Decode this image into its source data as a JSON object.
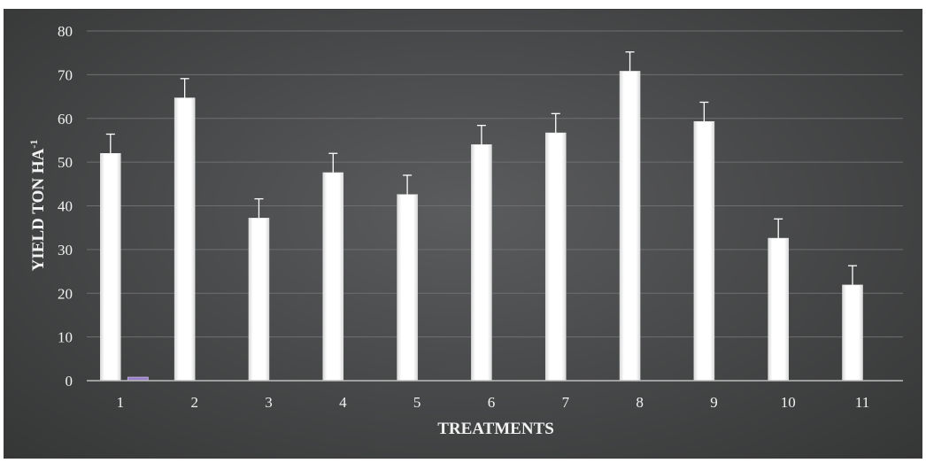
{
  "chart_data": {
    "type": "bar",
    "title": "",
    "xlabel": "TREATMENTS",
    "ylabel": "YIELD TON HA",
    "ylabel_superscript": "-1",
    "categories": [
      "1",
      "2",
      "3",
      "4",
      "5",
      "6",
      "7",
      "8",
      "9",
      "10",
      "11"
    ],
    "series": [
      {
        "values": [
          52,
          64.7,
          37.2,
          47.6,
          42.6,
          54,
          56.7,
          70.8,
          59.3,
          32.6,
          21.9
        ]
      },
      {
        "values": [
          0.8,
          0,
          0,
          0,
          0,
          0,
          0,
          0,
          0,
          0,
          0
        ]
      }
    ],
    "error": [
      4.4,
      4.4,
      4.4,
      4.4,
      4.4,
      4.4,
      4.4,
      4.4,
      4.4,
      4.4,
      4.4
    ],
    "ylim": [
      0,
      80
    ],
    "yticks": [
      0,
      10,
      20,
      30,
      40,
      50,
      60,
      70,
      80
    ],
    "grid": true,
    "colors": {
      "bar": "#ffffff",
      "bar_secondary": "#9a80c8",
      "grid": "#6e6f70",
      "text": "#f2f2f2",
      "background": "#4f5051"
    }
  }
}
